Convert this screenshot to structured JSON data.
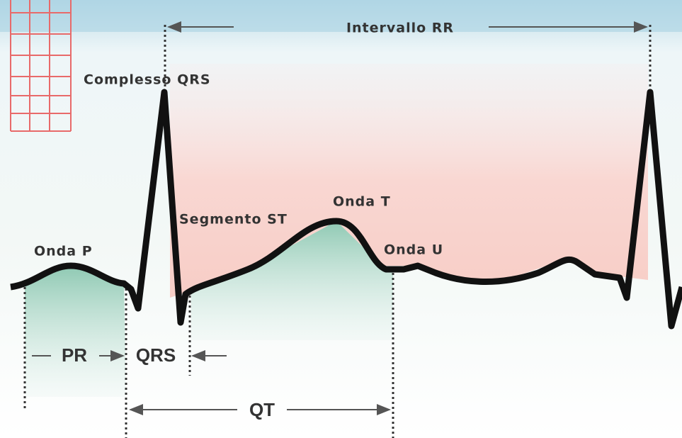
{
  "title": "Intervallo RR",
  "labels": {
    "qrs_complex": "Complesso QRS",
    "st_segment": "Segmento ST",
    "t_wave": "Onda T",
    "p_wave": "Onda P",
    "u_wave": "Onda U"
  },
  "intervals": {
    "pr": "PR",
    "qrs": "QRS",
    "qt": "QT"
  }
}
